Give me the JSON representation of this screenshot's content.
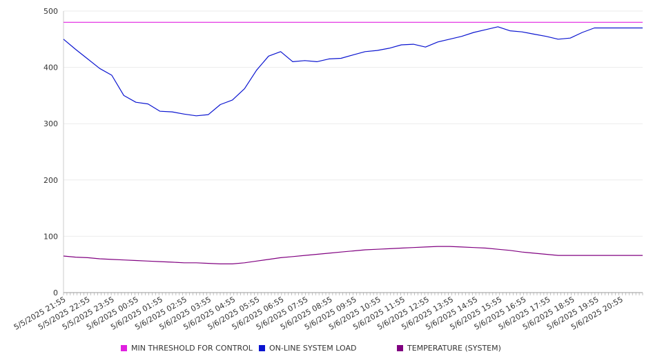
{
  "chart_data": {
    "type": "line",
    "title": "",
    "xlabel": "",
    "ylabel": "",
    "ylim": [
      0,
      500
    ],
    "y_ticks": [
      0,
      100,
      200,
      300,
      400,
      500
    ],
    "grid": true,
    "legend_position": "bottom",
    "x_tick_labels": [
      "5/5/2025 21:55",
      "5/5/2025 22:55",
      "5/5/2025 23:55",
      "5/6/2025 00:55",
      "5/6/2025 01:55",
      "5/6/2025 02:55",
      "5/6/2025 03:55",
      "5/6/2025 04:55",
      "5/6/2025 05:55",
      "5/6/2025 06:55",
      "5/6/2025 07:55",
      "5/6/2025 08:55",
      "5/6/2025 09:55",
      "5/6/2025 10:55",
      "5/6/2025 11:55",
      "5/6/2025 12:55",
      "5/6/2025 13:55",
      "5/6/2025 14:55",
      "5/6/2025 15:55",
      "5/6/2025 16:55",
      "5/6/2025 17:55",
      "5/6/2025 18:55",
      "5/6/2025 19:55",
      "5/6/2025 20:55"
    ],
    "x": [
      "5/5/2025 21:55",
      "5/5/2025 22:25",
      "5/5/2025 22:55",
      "5/5/2025 23:25",
      "5/5/2025 23:55",
      "5/6/2025 00:25",
      "5/6/2025 00:55",
      "5/6/2025 01:25",
      "5/6/2025 01:55",
      "5/6/2025 02:25",
      "5/6/2025 02:55",
      "5/6/2025 03:25",
      "5/6/2025 03:55",
      "5/6/2025 04:25",
      "5/6/2025 04:55",
      "5/6/2025 05:25",
      "5/6/2025 05:55",
      "5/6/2025 06:25",
      "5/6/2025 06:55",
      "5/6/2025 07:25",
      "5/6/2025 07:55",
      "5/6/2025 08:25",
      "5/6/2025 08:55",
      "5/6/2025 09:25",
      "5/6/2025 09:55",
      "5/6/2025 10:25",
      "5/6/2025 10:55",
      "5/6/2025 11:25",
      "5/6/2025 11:55",
      "5/6/2025 12:25",
      "5/6/2025 12:55",
      "5/6/2025 13:25",
      "5/6/2025 13:55",
      "5/6/2025 14:25",
      "5/6/2025 14:55",
      "5/6/2025 15:25",
      "5/6/2025 15:55",
      "5/6/2025 16:25",
      "5/6/2025 16:55",
      "5/6/2025 17:25",
      "5/6/2025 17:55",
      "5/6/2025 18:25",
      "5/6/2025 18:55",
      "5/6/2025 19:25",
      "5/6/2025 19:55",
      "5/6/2025 20:25",
      "5/6/2025 20:55",
      "5/6/2025 21:25",
      "5/6/2025 21:40"
    ],
    "series": [
      {
        "name": "MIN THRESHOLD FOR CONTROL",
        "color": "#e020e0",
        "values": [
          480,
          480,
          480,
          480,
          480,
          480,
          480,
          480,
          480,
          480,
          480,
          480,
          480,
          480,
          480,
          480,
          480,
          480,
          480,
          480,
          480,
          480,
          480,
          480,
          480,
          480,
          480,
          480,
          480,
          480,
          480,
          480,
          480,
          480,
          480,
          480,
          480,
          480,
          480,
          480,
          480,
          480,
          480,
          480,
          480,
          480,
          480,
          480,
          480
        ]
      },
      {
        "name": "ON-LINE SYSTEM LOAD",
        "color": "#0a14d0",
        "values": [
          450,
          432,
          415,
          398,
          386,
          350,
          338,
          335,
          322,
          321,
          317,
          314,
          316,
          334,
          342,
          362,
          395,
          420,
          428,
          410,
          412,
          410,
          415,
          416,
          422,
          428,
          430,
          434,
          440,
          441,
          436,
          445,
          450,
          455,
          462,
          467,
          472,
          465,
          463,
          459,
          455,
          450,
          452,
          462,
          470,
          470,
          470,
          470,
          470
        ]
      },
      {
        "name": "TEMPERATURE (SYSTEM)",
        "color": "#800080",
        "values": [
          65,
          63,
          62,
          60,
          59,
          58,
          57,
          56,
          55,
          54,
          53,
          53,
          52,
          51,
          51,
          53,
          56,
          59,
          62,
          64,
          66,
          68,
          70,
          72,
          74,
          76,
          77,
          78,
          79,
          80,
          81,
          82,
          82,
          81,
          80,
          79,
          77,
          75,
          72,
          70,
          68,
          66,
          66,
          66,
          66,
          66,
          66,
          66,
          66
        ]
      }
    ]
  }
}
